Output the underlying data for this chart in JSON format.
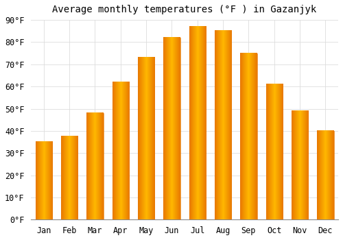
{
  "title": "Average monthly temperatures (°F ) in Gazanjyk",
  "months": [
    "Jan",
    "Feb",
    "Mar",
    "Apr",
    "May",
    "Jun",
    "Jul",
    "Aug",
    "Sep",
    "Oct",
    "Nov",
    "Dec"
  ],
  "values": [
    35,
    37.5,
    48,
    62,
    73,
    82,
    87,
    85,
    75,
    61,
    49,
    40
  ],
  "bar_color_center": "#FFB800",
  "bar_color_edge": "#E87800",
  "background_color": "#ffffff",
  "ylim": [
    0,
    90
  ],
  "yticks": [
    0,
    10,
    20,
    30,
    40,
    50,
    60,
    70,
    80,
    90
  ],
  "grid_color": "#dddddd",
  "title_fontsize": 10,
  "tick_fontsize": 8.5,
  "bar_width": 0.65
}
